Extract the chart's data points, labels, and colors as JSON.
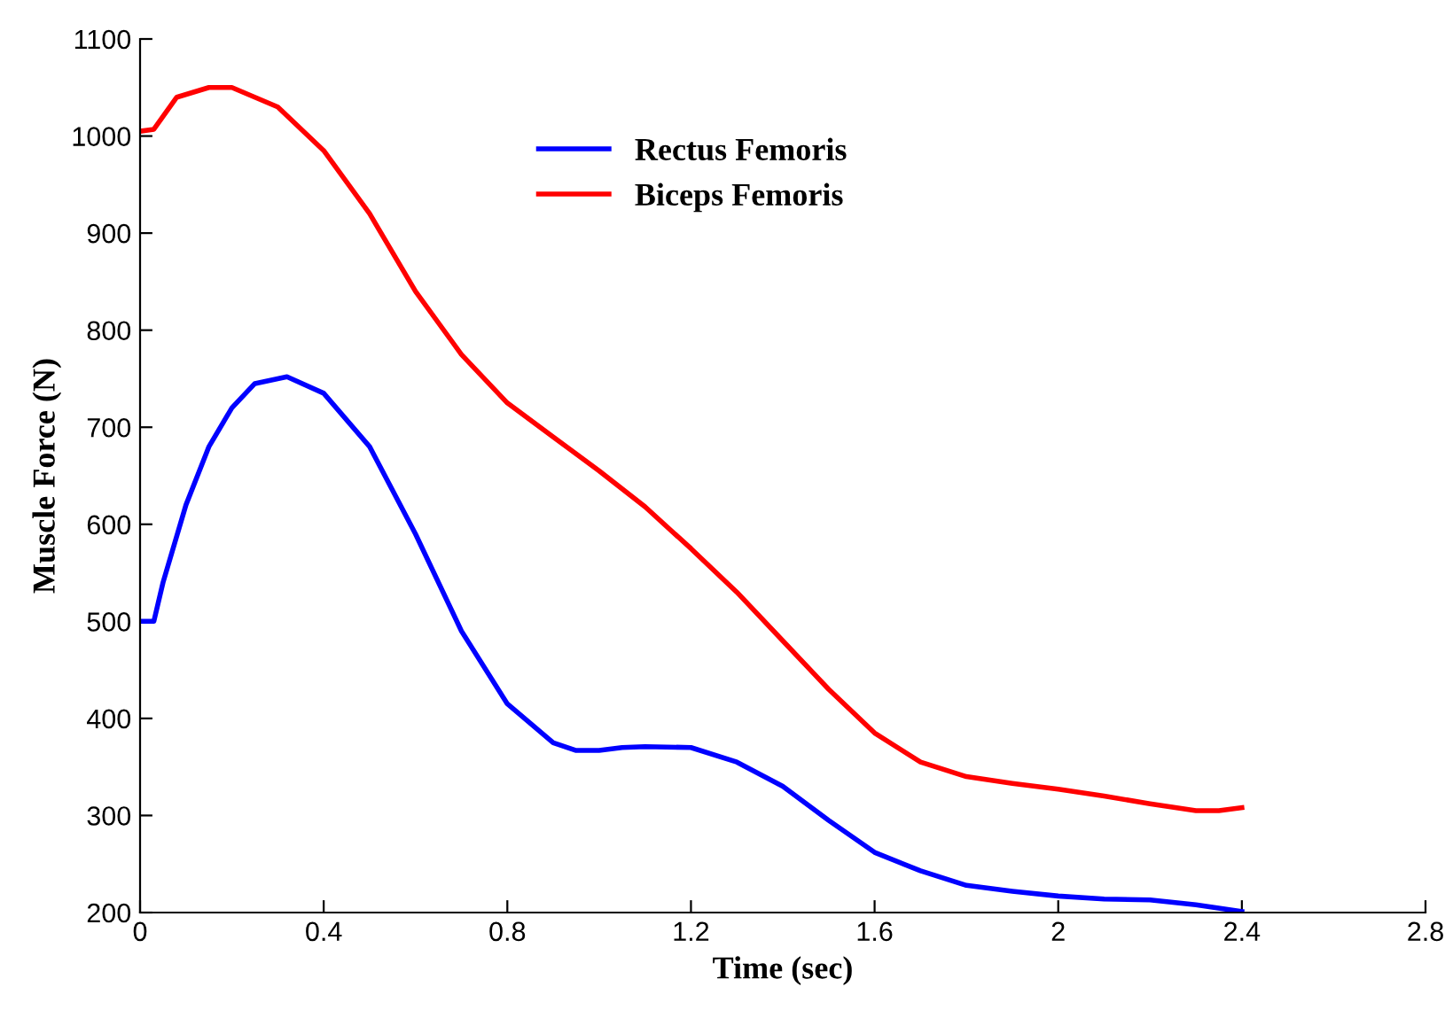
{
  "chart_data": {
    "type": "line",
    "xlabel": "Time (sec)",
    "ylabel": "Muscle Force (N)",
    "xlim": [
      0,
      2.8
    ],
    "xticks": [
      0,
      0.4,
      0.8,
      1.2,
      1.6,
      2,
      2.4,
      2.8
    ],
    "ylim": [
      200,
      1100
    ],
    "yticks": [
      200,
      300,
      400,
      500,
      600,
      700,
      800,
      900,
      1000,
      1100
    ],
    "grid": false,
    "legend": "top",
    "line_style": "solid",
    "marker": "none",
    "series": [
      {
        "name": "Rectus Femoris",
        "color": "#0000ff",
        "x": [
          0,
          0.03,
          0.05,
          0.1,
          0.15,
          0.2,
          0.25,
          0.32,
          0.4,
          0.5,
          0.6,
          0.7,
          0.8,
          0.9,
          0.95,
          1.0,
          1.05,
          1.1,
          1.2,
          1.3,
          1.4,
          1.5,
          1.6,
          1.7,
          1.8,
          1.9,
          2.0,
          2.1,
          2.2,
          2.3,
          2.4
        ],
        "values": [
          500,
          500,
          540,
          620,
          680,
          720,
          745,
          752,
          735,
          680,
          590,
          490,
          415,
          375,
          367,
          367,
          370,
          371,
          370,
          355,
          330,
          295,
          262,
          243,
          228,
          222,
          217,
          214,
          213,
          208,
          201
        ]
      },
      {
        "name": "Biceps Femoris",
        "color": "#ff0000",
        "x": [
          0,
          0.03,
          0.08,
          0.15,
          0.2,
          0.3,
          0.4,
          0.5,
          0.6,
          0.7,
          0.8,
          0.9,
          1.0,
          1.1,
          1.2,
          1.3,
          1.4,
          1.5,
          1.6,
          1.7,
          1.8,
          1.9,
          2.0,
          2.1,
          2.2,
          2.3,
          2.35,
          2.4
        ],
        "values": [
          1005,
          1007,
          1040,
          1050,
          1050,
          1030,
          985,
          920,
          840,
          775,
          725,
          690,
          655,
          618,
          575,
          530,
          480,
          430,
          385,
          355,
          340,
          333,
          327,
          320,
          312,
          305,
          305,
          308
        ]
      }
    ]
  }
}
